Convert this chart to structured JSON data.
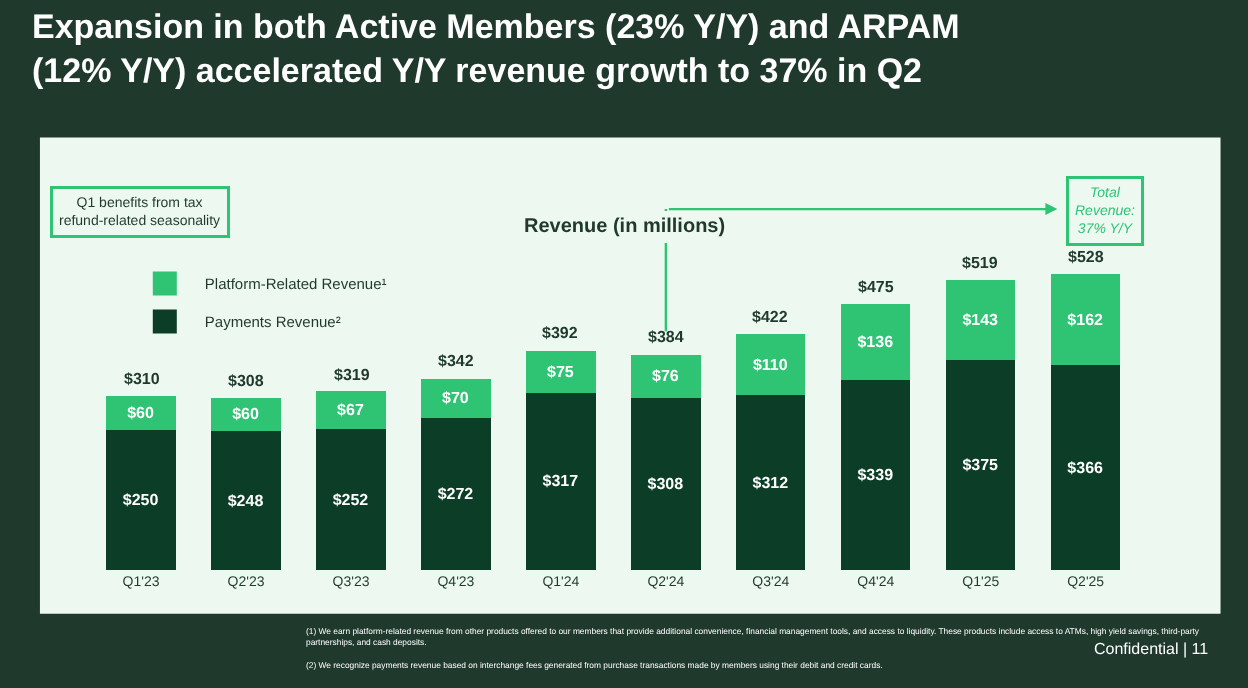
{
  "chart_data": {
    "type": "bar",
    "title": "Expansion in both Active Members (23% Y/Y) and ARPAM (12% Y/Y) accelerated Y/Y revenue growth to 37% in Q2",
    "subtitle": "Revenue (in millions)",
    "categories": [
      "Q1'23",
      "Q2'23",
      "Q3'23",
      "Q4'23",
      "Q1'24",
      "Q2'24",
      "Q3'24",
      "Q4'24",
      "Q1'25",
      "Q2'25"
    ],
    "stacked": true,
    "series": [
      {
        "name": "Payments Revenue²",
        "color": "#0c3d27",
        "values": [
          250,
          248,
          252,
          272,
          317,
          308,
          312,
          339,
          375,
          366
        ],
        "value_labels": [
          "$250",
          "$248",
          "$252",
          "$272",
          "$317",
          "$308",
          "$312",
          "$339",
          "$375",
          "$366"
        ]
      },
      {
        "name": "Platform-Related Revenue¹",
        "color": "#2ec474",
        "values": [
          60,
          60,
          67,
          70,
          75,
          76,
          110,
          136,
          143,
          162
        ],
        "value_labels": [
          "$60",
          "$60",
          "$67",
          "$70",
          "$75",
          "$76",
          "$110",
          "$136",
          "$143",
          "$162"
        ]
      }
    ],
    "totals": [
      "$310",
      "$308",
      "$319",
      "$342",
      "$392",
      "$384",
      "$422",
      "$475",
      "$519",
      "$528"
    ],
    "legend": "top left",
    "grid": false,
    "annotations": [
      "Q1 benefits from tax refund-related seasonality",
      "Total Revenue: 37% Y/Y",
      "(1) We earn platform-related revenue from other products offered to our members that provide additional convenience, financial management tools, and access to liquidity. These products include access to ATMs, high yield savings, third-party partnerships, and cash deposits.",
      "(2) We recognize payments revenue based on interchange fees generated from purchase transactions made by members using their debit and credit cards.",
      "Confidential | 11"
    ]
  }
}
